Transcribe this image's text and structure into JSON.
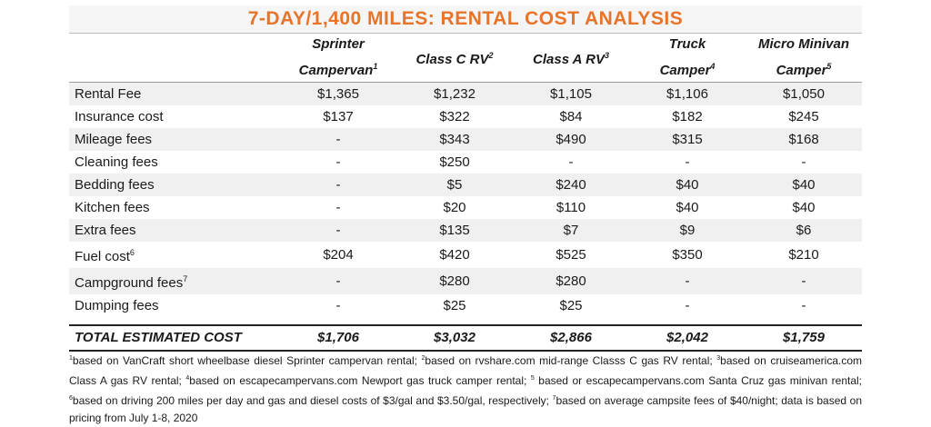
{
  "title": "7-DAY/1,400 MILES: RENTAL COST ANALYSIS",
  "columns": [
    {
      "line1": "Sprinter",
      "line2": "Campervan",
      "sup": "1"
    },
    {
      "line1": "Class C RV",
      "line2": "",
      "sup": "2"
    },
    {
      "line1": "Class A RV",
      "line2": "",
      "sup": "3"
    },
    {
      "line1": "Truck",
      "line2": "Camper",
      "sup": "4"
    },
    {
      "line1": "Micro Minivan",
      "line2": "Camper",
      "sup": "5"
    }
  ],
  "rows": [
    {
      "label": "Rental Fee",
      "sup": "",
      "values": [
        "$1,365",
        "$1,232",
        "$1,105",
        "$1,106",
        "$1,050"
      ]
    },
    {
      "label": "Insurance cost",
      "sup": "",
      "values": [
        "$137",
        "$322",
        "$84",
        "$182",
        "$245"
      ]
    },
    {
      "label": "Mileage fees",
      "sup": "",
      "values": [
        "-",
        "$343",
        "$490",
        "$315",
        "$168"
      ]
    },
    {
      "label": "Cleaning fees",
      "sup": "",
      "values": [
        "-",
        "$250",
        "-",
        "-",
        "-"
      ]
    },
    {
      "label": "Bedding fees",
      "sup": "",
      "values": [
        "-",
        "$5",
        "$240",
        "$40",
        "$40"
      ]
    },
    {
      "label": "Kitchen fees",
      "sup": "",
      "values": [
        "-",
        "$20",
        "$110",
        "$40",
        "$40"
      ]
    },
    {
      "label": "Extra fees",
      "sup": "",
      "values": [
        "-",
        "$135",
        "$7",
        "$9",
        "$6"
      ]
    },
    {
      "label": "Fuel cost",
      "sup": "6",
      "values": [
        "$204",
        "$420",
        "$525",
        "$350",
        "$210"
      ]
    },
    {
      "label": "Campground fees",
      "sup": "7",
      "values": [
        "-",
        "$280",
        "$280",
        "-",
        "-"
      ]
    },
    {
      "label": "Dumping fees",
      "sup": "",
      "values": [
        "-",
        "$25",
        "$25",
        "-",
        "-"
      ]
    }
  ],
  "total": {
    "label": "TOTAL ESTIMATED COST",
    "values": [
      "$1,706",
      "$3,032",
      "$2,866",
      "$2,042",
      "$1,759"
    ]
  },
  "footnotes": [
    {
      "sup": "1",
      "text": "based on VanCraft short wheelbase diesel Sprinter campervan rental; "
    },
    {
      "sup": "2",
      "text": "based on rvshare.com mid-range Classs C gas RV rental; "
    },
    {
      "sup": "3",
      "text": "based on cruiseamerica.com Class A gas RV rental; "
    },
    {
      "sup": "4",
      "text": "based on escapecampervans.com Newport gas truck camper rental; "
    },
    {
      "sup": "5",
      "text": " based or escapecampervans.com Santa Cruz gas minivan rental; "
    },
    {
      "sup": "6",
      "text": "based on driving 200 miles per day and gas and diesel costs of $3/gal and $3.50/gal, respectively; "
    },
    {
      "sup": "7",
      "text": "based on average campsite fees of $40/night; data is based on pricing from July 1-8, 2020"
    }
  ],
  "colors": {
    "title": "#e8742a",
    "row_shade": "#f0f0f0"
  }
}
